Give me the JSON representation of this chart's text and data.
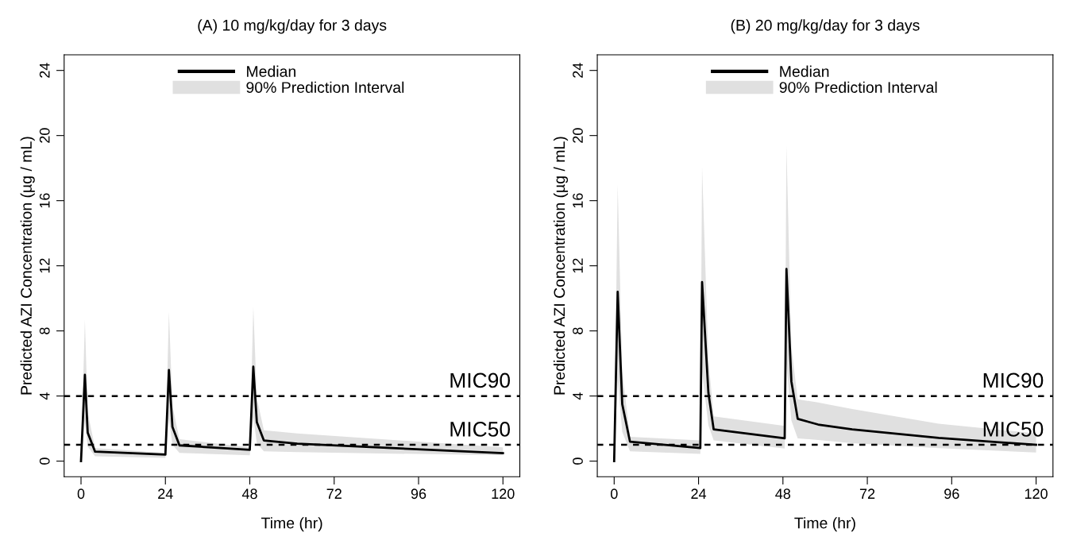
{
  "chart_data": [
    {
      "type": "line",
      "title": "(A) 10 mg/kg/day for 3 days",
      "xlabel": "Time (hr)",
      "ylabel": "Predicted AZI Concentration (µg / mL)",
      "xlim": [
        -4.8,
        124.8
      ],
      "ylim": [
        -0.96,
        24.96
      ],
      "xticks": [
        0,
        24,
        48,
        72,
        96,
        120
      ],
      "yticks": [
        0,
        4,
        8,
        12,
        16,
        20,
        24
      ],
      "grid": false,
      "legend": "top",
      "annotations": [
        "90% Prediction Interval"
      ],
      "series": [
        {
          "name": "Median",
          "color": "#000000",
          "x": [
            0,
            1.1,
            1.9,
            4,
            24,
            25,
            26,
            28,
            48,
            49,
            50,
            52,
            61.5,
            120
          ],
          "values": [
            0,
            5.3,
            1.75,
            0.58,
            0.4,
            5.6,
            2.1,
            0.97,
            0.69,
            5.8,
            2.4,
            1.27,
            1.07,
            0.49
          ],
          "lower": [
            0,
            2.5,
            0.9,
            0.3,
            0.2,
            2.6,
            1.0,
            0.5,
            0.36,
            2.7,
            1.1,
            0.6,
            0.55,
            0.36
          ],
          "upper": [
            0,
            8.7,
            3.0,
            0.8,
            0.5,
            9.2,
            3.4,
            1.35,
            0.85,
            9.5,
            3.9,
            1.9,
            1.7,
            0.85
          ]
        }
      ],
      "ref_lines": [
        {
          "axis": "y",
          "value": 4,
          "label": "MIC90",
          "color": "#000000",
          "line_style": "dashed"
        },
        {
          "axis": "y",
          "value": 1,
          "label": "MIC50",
          "color": "#000000",
          "line_style": "dashed"
        }
      ]
    },
    {
      "type": "line",
      "title": "(B) 20 mg/kg/day for 3 days",
      "xlabel": "Time (hr)",
      "ylabel": "Predicted AZI Concentration (µg / mL)",
      "xlim": [
        -4.8,
        124.8
      ],
      "ylim": [
        -0.96,
        24.96
      ],
      "xticks": [
        0,
        24,
        48,
        72,
        96,
        120
      ],
      "yticks": [
        0,
        4,
        8,
        12,
        16,
        20,
        24
      ],
      "grid": false,
      "legend": "top",
      "annotations": [
        "90% Prediction Interval"
      ],
      "series": [
        {
          "name": "Median",
          "color": "#000000",
          "x": [
            0,
            1,
            2.3,
            4.5,
            24.5,
            25,
            26.8,
            28.3,
            48.5,
            49,
            50.4,
            52.2,
            58,
            67.7,
            92.3,
            120
          ],
          "values": [
            0,
            10.4,
            3.5,
            1.2,
            0.8,
            11.0,
            4.2,
            1.95,
            1.4,
            11.8,
            4.9,
            2.6,
            2.25,
            1.95,
            1.43,
            1.0
          ],
          "lower": [
            0,
            5.0,
            1.8,
            0.6,
            0.44,
            5.5,
            2.2,
            1.27,
            0.77,
            6.0,
            2.5,
            1.4,
            1.3,
            1.1,
            0.8,
            0.53
          ],
          "upper": [
            0,
            17.0,
            5.5,
            1.5,
            1.27,
            18.1,
            6.3,
            2.75,
            2.17,
            19.4,
            7.0,
            3.8,
            3.6,
            3.2,
            2.3,
            1.7
          ]
        }
      ],
      "ref_lines": [
        {
          "axis": "y",
          "value": 4,
          "label": "MIC90",
          "color": "#000000",
          "line_style": "dashed"
        },
        {
          "axis": "y",
          "value": 1,
          "label": "MIC50",
          "color": "#000000",
          "line_style": "dashed"
        }
      ]
    }
  ]
}
